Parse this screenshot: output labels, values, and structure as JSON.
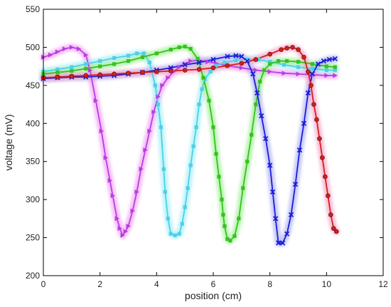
{
  "chart_data": {
    "type": "line",
    "xlabel": "position (cm)",
    "ylabel": "voltage (mV)",
    "xlim": [
      0,
      12
    ],
    "ylim": [
      200,
      550
    ],
    "xticks": [
      "0",
      "2",
      "4",
      "6",
      "8",
      "10",
      "12"
    ],
    "yticks": [
      "200",
      "250",
      "300",
      "350",
      "400",
      "450",
      "500",
      "550"
    ],
    "grid": false,
    "series": [
      {
        "color": "#b93ee0",
        "glow": "#f2a6f5",
        "marker": "triangle-right",
        "points": [
          [
            0,
            487
          ],
          [
            0.25,
            490
          ],
          [
            0.5,
            494
          ],
          [
            0.75,
            498
          ],
          [
            1.0,
            500
          ],
          [
            1.25,
            498
          ],
          [
            1.5,
            490
          ],
          [
            1.65,
            470
          ],
          [
            1.85,
            430
          ],
          [
            2.05,
            390
          ],
          [
            2.2,
            355
          ],
          [
            2.35,
            325
          ],
          [
            2.45,
            305
          ],
          [
            2.6,
            275
          ],
          [
            2.7,
            262
          ],
          [
            2.8,
            253
          ],
          [
            2.9,
            258
          ],
          [
            3.0,
            265
          ],
          [
            3.15,
            285
          ],
          [
            3.3,
            310
          ],
          [
            3.45,
            340
          ],
          [
            3.6,
            365
          ],
          [
            3.75,
            390
          ],
          [
            3.9,
            415
          ],
          [
            4.05,
            435
          ],
          [
            4.2,
            450
          ],
          [
            4.4,
            460
          ],
          [
            4.6,
            468
          ],
          [
            4.8,
            474
          ],
          [
            5.0,
            478
          ],
          [
            5.2,
            482
          ],
          [
            5.5,
            483
          ],
          [
            5.8,
            481
          ],
          [
            6.1,
            479
          ],
          [
            6.5,
            476
          ],
          [
            7.0,
            473
          ],
          [
            7.5,
            470
          ],
          [
            8.0,
            468
          ],
          [
            8.5,
            466
          ],
          [
            9.0,
            465
          ],
          [
            9.5,
            464
          ],
          [
            10.0,
            463
          ],
          [
            10.3,
            463
          ]
        ]
      },
      {
        "color": "#4fcfe8",
        "glow": "#a8f0f7",
        "marker": "square",
        "points": [
          [
            0,
            468
          ],
          [
            0.5,
            471
          ],
          [
            1.0,
            474
          ],
          [
            1.5,
            478
          ],
          [
            2.0,
            482
          ],
          [
            2.5,
            486
          ],
          [
            3.0,
            489
          ],
          [
            3.3,
            492
          ],
          [
            3.55,
            492
          ],
          [
            3.75,
            480
          ],
          [
            3.95,
            450
          ],
          [
            4.05,
            425
          ],
          [
            4.15,
            395
          ],
          [
            4.25,
            340
          ],
          [
            4.3,
            310
          ],
          [
            4.4,
            275
          ],
          [
            4.5,
            255
          ],
          [
            4.65,
            253
          ],
          [
            4.8,
            255
          ],
          [
            4.9,
            268
          ],
          [
            5.0,
            290
          ],
          [
            5.1,
            315
          ],
          [
            5.2,
            345
          ],
          [
            5.3,
            370
          ],
          [
            5.4,
            395
          ],
          [
            5.5,
            425
          ],
          [
            5.6,
            445
          ],
          [
            5.7,
            458
          ],
          [
            5.9,
            468
          ],
          [
            6.1,
            476
          ],
          [
            6.4,
            480
          ],
          [
            6.8,
            483
          ],
          [
            7.2,
            484
          ],
          [
            7.6,
            484
          ],
          [
            8.0,
            481
          ],
          [
            8.5,
            477
          ],
          [
            9.0,
            474
          ],
          [
            9.5,
            472
          ],
          [
            10.0,
            470
          ],
          [
            10.3,
            470
          ]
        ]
      },
      {
        "color": "#35c21e",
        "glow": "#a4f09a",
        "marker": "square",
        "points": [
          [
            0,
            465
          ],
          [
            0.5,
            467
          ],
          [
            1.0,
            469
          ],
          [
            1.5,
            472
          ],
          [
            2.0,
            475
          ],
          [
            2.5,
            478
          ],
          [
            3.0,
            482
          ],
          [
            3.5,
            487
          ],
          [
            4.0,
            492
          ],
          [
            4.5,
            497
          ],
          [
            4.8,
            500
          ],
          [
            5.0,
            501
          ],
          [
            5.2,
            498
          ],
          [
            5.45,
            485
          ],
          [
            5.65,
            460
          ],
          [
            5.85,
            430
          ],
          [
            6.0,
            395
          ],
          [
            6.1,
            360
          ],
          [
            6.2,
            330
          ],
          [
            6.3,
            300
          ],
          [
            6.35,
            280
          ],
          [
            6.4,
            265
          ],
          [
            6.5,
            248
          ],
          [
            6.6,
            246
          ],
          [
            6.75,
            252
          ],
          [
            6.9,
            275
          ],
          [
            7.05,
            315
          ],
          [
            7.2,
            350
          ],
          [
            7.35,
            385
          ],
          [
            7.5,
            425
          ],
          [
            7.65,
            455
          ],
          [
            7.8,
            470
          ],
          [
            8.0,
            478
          ],
          [
            8.3,
            482
          ],
          [
            8.6,
            482
          ],
          [
            9.0,
            481
          ],
          [
            9.5,
            478
          ],
          [
            10.0,
            475
          ],
          [
            10.3,
            474
          ]
        ]
      },
      {
        "color": "#1a1ed6",
        "glow": "#b3b4f5",
        "marker": "x",
        "points": [
          [
            0,
            459
          ],
          [
            0.5,
            460
          ],
          [
            1.0,
            461
          ],
          [
            1.5,
            461
          ],
          [
            2.0,
            462
          ],
          [
            2.5,
            463
          ],
          [
            3.0,
            465
          ],
          [
            3.5,
            467
          ],
          [
            4.0,
            470
          ],
          [
            4.5,
            473
          ],
          [
            5.0,
            477
          ],
          [
            5.5,
            480
          ],
          [
            6.0,
            484
          ],
          [
            6.5,
            488
          ],
          [
            6.8,
            489
          ],
          [
            7.0,
            488
          ],
          [
            7.2,
            482
          ],
          [
            7.4,
            465
          ],
          [
            7.55,
            440
          ],
          [
            7.7,
            410
          ],
          [
            7.85,
            380
          ],
          [
            8.0,
            345
          ],
          [
            8.1,
            310
          ],
          [
            8.2,
            275
          ],
          [
            8.3,
            243
          ],
          [
            8.45,
            243
          ],
          [
            8.6,
            255
          ],
          [
            8.75,
            280
          ],
          [
            8.9,
            320
          ],
          [
            9.05,
            365
          ],
          [
            9.2,
            400
          ],
          [
            9.35,
            440
          ],
          [
            9.5,
            465
          ],
          [
            9.7,
            478
          ],
          [
            9.9,
            482
          ],
          [
            10.1,
            484
          ],
          [
            10.3,
            485
          ]
        ]
      },
      {
        "color": "#d11f1f",
        "glow": "#f5a8c8",
        "marker": "circle",
        "points": [
          [
            0,
            460
          ],
          [
            0.5,
            461
          ],
          [
            1.0,
            462
          ],
          [
            1.5,
            463
          ],
          [
            2.0,
            464
          ],
          [
            2.5,
            465
          ],
          [
            3.0,
            466
          ],
          [
            3.5,
            467
          ],
          [
            4.0,
            468
          ],
          [
            4.5,
            469
          ],
          [
            5.0,
            470
          ],
          [
            5.5,
            471
          ],
          [
            6.0,
            473
          ],
          [
            6.5,
            476
          ],
          [
            7.0,
            479
          ],
          [
            7.5,
            484
          ],
          [
            8.0,
            491
          ],
          [
            8.4,
            497
          ],
          [
            8.6,
            499
          ],
          [
            8.8,
            500
          ],
          [
            9.0,
            497
          ],
          [
            9.2,
            487
          ],
          [
            9.35,
            468
          ],
          [
            9.45,
            450
          ],
          [
            9.55,
            425
          ],
          [
            9.65,
            405
          ],
          [
            9.75,
            380
          ],
          [
            9.85,
            355
          ],
          [
            9.95,
            330
          ],
          [
            10.05,
            305
          ],
          [
            10.15,
            280
          ],
          [
            10.25,
            262
          ],
          [
            10.35,
            258
          ]
        ]
      }
    ]
  }
}
